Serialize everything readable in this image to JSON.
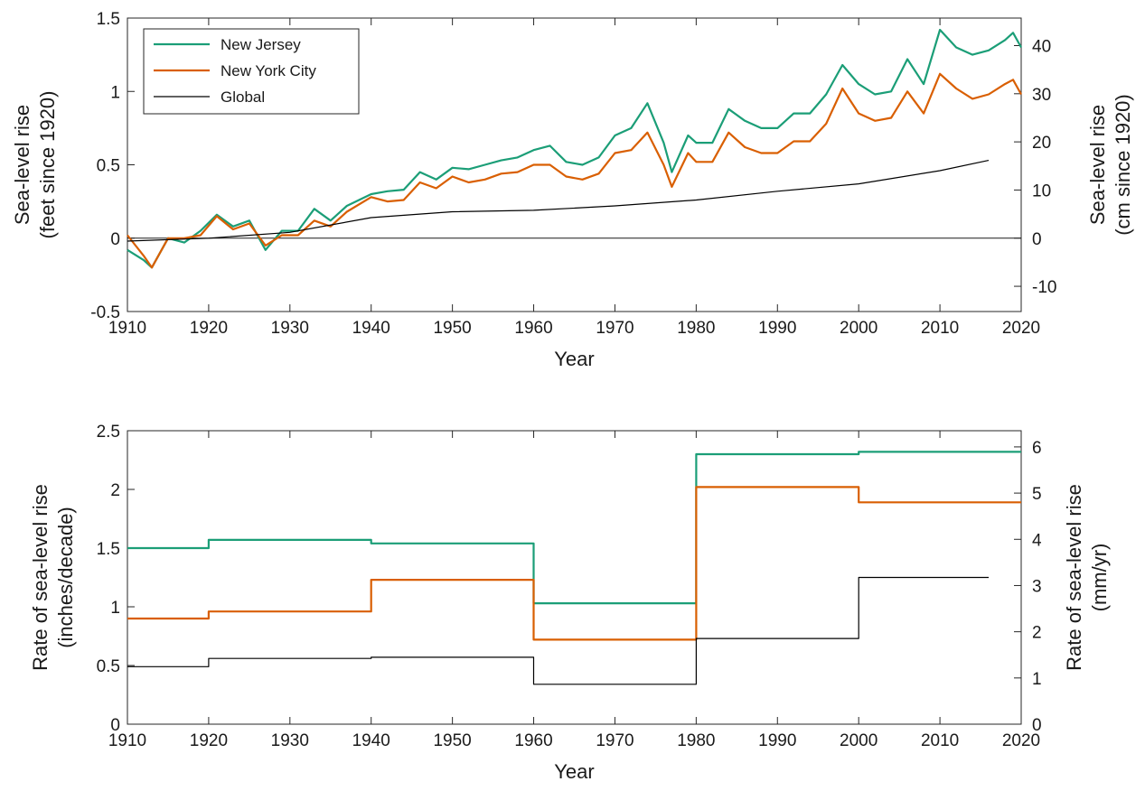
{
  "chart_data": [
    {
      "type": "line",
      "xlabel": "Year",
      "ylabel": [
        "Sea-level rise",
        "(feet since 1920)"
      ],
      "ylabel_right": [
        "Sea-level rise",
        "(cm since 1920)"
      ],
      "xlim": [
        1910,
        2020
      ],
      "ylim": [
        -0.5,
        1.5
      ],
      "ylim_right_cm": [
        -15.24,
        45.72
      ],
      "x_ticks": [
        "1910",
        "1920",
        "1930",
        "1940",
        "1950",
        "1960",
        "1970",
        "1980",
        "1990",
        "2000",
        "2010",
        "2020"
      ],
      "y_ticks": [
        "-0.5",
        "0",
        "0.5",
        "1",
        "1.5"
      ],
      "y_ticks_right": [
        "-10",
        "0",
        "10",
        "20",
        "30",
        "40"
      ],
      "legend_position": "top-left",
      "legend": [
        "New Jersey",
        "New York City",
        "Global"
      ],
      "series": [
        {
          "name": "New Jersey",
          "color": "#1b9e77",
          "x": [
            1910,
            1912,
            1913,
            1915,
            1917,
            1919,
            1921,
            1923,
            1925,
            1927,
            1929,
            1931,
            1933,
            1935,
            1937,
            1940,
            1942,
            1944,
            1946,
            1948,
            1950,
            1952,
            1954,
            1956,
            1958,
            1960,
            1962,
            1964,
            1966,
            1968,
            1970,
            1972,
            1974,
            1976,
            1977,
            1979,
            1980,
            1982,
            1984,
            1986,
            1988,
            1990,
            1992,
            1994,
            1996,
            1998,
            2000,
            2002,
            2004,
            2006,
            2008,
            2010,
            2012,
            2014,
            2016,
            2018,
            2019,
            2020
          ],
          "y": [
            -0.08,
            -0.15,
            -0.2,
            0.0,
            -0.03,
            0.05,
            0.16,
            0.08,
            0.12,
            -0.08,
            0.05,
            0.05,
            0.2,
            0.12,
            0.22,
            0.3,
            0.32,
            0.33,
            0.45,
            0.4,
            0.48,
            0.47,
            0.5,
            0.53,
            0.55,
            0.6,
            0.63,
            0.52,
            0.5,
            0.55,
            0.7,
            0.75,
            0.92,
            0.65,
            0.45,
            0.7,
            0.65,
            0.65,
            0.88,
            0.8,
            0.75,
            0.75,
            0.85,
            0.85,
            0.98,
            1.18,
            1.05,
            0.98,
            1.0,
            1.22,
            1.05,
            1.42,
            1.3,
            1.25,
            1.28,
            1.35,
            1.4,
            1.3
          ]
        },
        {
          "name": "New York City",
          "color": "#d95f02",
          "x": [
            1910,
            1912,
            1913,
            1915,
            1917,
            1919,
            1921,
            1923,
            1925,
            1927,
            1929,
            1931,
            1933,
            1935,
            1937,
            1940,
            1942,
            1944,
            1946,
            1948,
            1950,
            1952,
            1954,
            1956,
            1958,
            1960,
            1962,
            1964,
            1966,
            1968,
            1970,
            1972,
            1974,
            1976,
            1977,
            1979,
            1980,
            1982,
            1984,
            1986,
            1988,
            1990,
            1992,
            1994,
            1996,
            1998,
            2000,
            2002,
            2004,
            2006,
            2008,
            2010,
            2012,
            2014,
            2016,
            2018,
            2019,
            2020
          ],
          "y": [
            0.02,
            -0.12,
            -0.2,
            0.0,
            0.0,
            0.02,
            0.15,
            0.06,
            0.1,
            -0.05,
            0.02,
            0.02,
            0.12,
            0.08,
            0.18,
            0.28,
            0.25,
            0.26,
            0.38,
            0.34,
            0.42,
            0.38,
            0.4,
            0.44,
            0.45,
            0.5,
            0.5,
            0.42,
            0.4,
            0.44,
            0.58,
            0.6,
            0.72,
            0.5,
            0.35,
            0.58,
            0.52,
            0.52,
            0.72,
            0.62,
            0.58,
            0.58,
            0.66,
            0.66,
            0.78,
            1.02,
            0.85,
            0.8,
            0.82,
            1.0,
            0.85,
            1.12,
            1.02,
            0.95,
            0.98,
            1.05,
            1.08,
            0.98
          ]
        },
        {
          "name": "Global",
          "color": "#000000",
          "x": [
            1910,
            1920,
            1930,
            1940,
            1950,
            1960,
            1970,
            1980,
            1990,
            2000,
            2010,
            2016
          ],
          "y": [
            -0.02,
            0.0,
            0.04,
            0.14,
            0.18,
            0.19,
            0.22,
            0.26,
            0.32,
            0.37,
            0.46,
            0.53
          ]
        }
      ]
    },
    {
      "type": "line",
      "xlabel": "Year",
      "ylabel": [
        "Rate of sea-level rise",
        "(inches/decade)"
      ],
      "ylabel_right": [
        "Rate of sea-level rise",
        "(mm/yr)"
      ],
      "xlim": [
        1910,
        2020
      ],
      "ylim": [
        0,
        2.5
      ],
      "ylim_right_mm": [
        0,
        6.35
      ],
      "x_ticks": [
        "1910",
        "1920",
        "1930",
        "1940",
        "1950",
        "1960",
        "1970",
        "1980",
        "1990",
        "2000",
        "2010",
        "2020"
      ],
      "y_ticks": [
        "0",
        "0.5",
        "1",
        "1.5",
        "2",
        "2.5"
      ],
      "y_ticks_right": [
        "0",
        "1",
        "2",
        "3",
        "4",
        "5",
        "6"
      ],
      "series": [
        {
          "name": "New Jersey",
          "color": "#1b9e77",
          "steps": [
            [
              1910,
              1920,
              1.5
            ],
            [
              1920,
              1940,
              1.57
            ],
            [
              1940,
              1960,
              1.54
            ],
            [
              1960,
              1980,
              1.03
            ],
            [
              1980,
              2000,
              2.3
            ],
            [
              2000,
              2020,
              2.32
            ]
          ]
        },
        {
          "name": "New York City",
          "color": "#d95f02",
          "steps": [
            [
              1910,
              1920,
              0.9
            ],
            [
              1920,
              1940,
              0.96
            ],
            [
              1940,
              1960,
              1.23
            ],
            [
              1960,
              1980,
              0.72
            ],
            [
              1980,
              2000,
              2.02
            ],
            [
              2000,
              2020,
              1.89
            ]
          ]
        },
        {
          "name": "Global",
          "color": "#000000",
          "steps": [
            [
              1910,
              1920,
              0.49
            ],
            [
              1920,
              1940,
              0.56
            ],
            [
              1940,
              1960,
              0.57
            ],
            [
              1960,
              1980,
              0.34
            ],
            [
              1980,
              2000,
              0.73
            ],
            [
              2000,
              2016,
              1.25
            ]
          ]
        }
      ]
    }
  ]
}
